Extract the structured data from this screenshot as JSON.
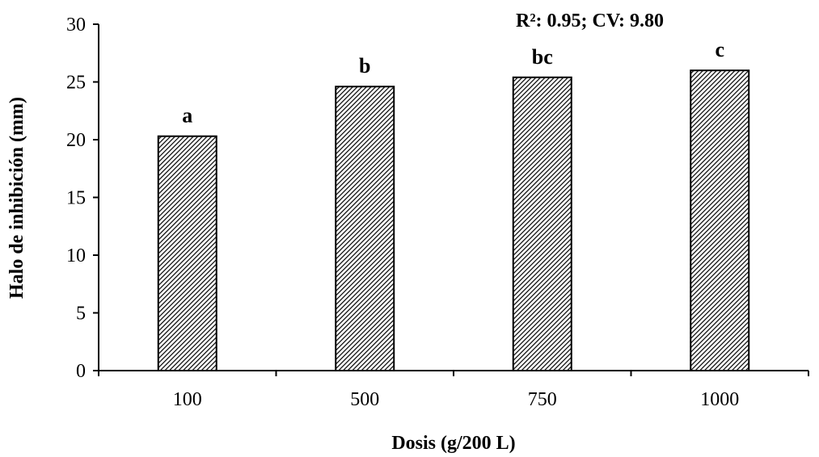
{
  "chart_data": {
    "type": "bar",
    "categories": [
      "100",
      "500",
      "750",
      "1000"
    ],
    "values": [
      20.3,
      24.6,
      25.4,
      26.0
    ],
    "significance_labels": [
      "a",
      "b",
      "bc",
      "c"
    ],
    "xlabel": "Dosis (g/200 L)",
    "ylabel": "Halo de inhibición (mm)",
    "ylim": [
      0,
      30
    ],
    "yticks": [
      0,
      5,
      10,
      15,
      20,
      25,
      30
    ],
    "annotation": "R²: 0.95; CV: 9.80",
    "grid": false,
    "legend": "none",
    "bar_fill": "diagonal-hatch",
    "colors": {
      "bar_stroke": "#000000",
      "hatch": "#000000",
      "background": "#ffffff"
    }
  }
}
